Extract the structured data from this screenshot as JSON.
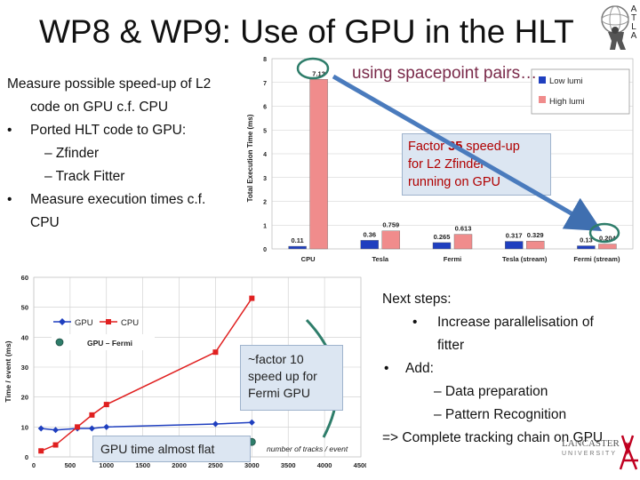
{
  "slide": {
    "title": "WP8 & WP9: Use of GPU in the HLT",
    "logo_letters": [
      "A",
      "T",
      "L",
      "A"
    ],
    "bullets": {
      "intro_line1": "Measure possible speed-up of L2",
      "intro_line2": "code on GPU c.f. CPU",
      "ported": "Ported HLT code to GPU:",
      "sub1": "– Zfinder",
      "sub2": "– Track Fitter",
      "measure_line1": "Measure execution times c.f.",
      "measure_line2": "CPU"
    },
    "next_steps": {
      "heading": "Next steps:",
      "item1_line1": "Increase parallelisation of",
      "item1_line2": "fitter",
      "add": "Add:",
      "sub1": "– Data preparation",
      "sub2": "– Pattern Recognition",
      "conclusion": "=> Complete tracking chain on GPU"
    },
    "lancaster": {
      "line1": "LANCASTER",
      "line2": "UNIVERSITY"
    }
  },
  "chart_data": [
    {
      "type": "bar",
      "ylabel": "Total Execution Time (ms)",
      "ylim": [
        0,
        8
      ],
      "yticks": [
        0,
        1,
        2,
        3,
        4,
        5,
        6,
        7,
        8
      ],
      "categories": [
        "CPU",
        "Tesla",
        "Fermi",
        "Tesla (stream)",
        "Fermi (stream)"
      ],
      "series": [
        {
          "name": "Low lumi",
          "color": "#1f3fbf",
          "values": [
            0.11,
            0.36,
            0.265,
            0.317,
            0.13
          ],
          "labels": [
            "0.11",
            "0.36",
            "0.265",
            "0.317",
            "0.13"
          ]
        },
        {
          "name": "High lumi",
          "color": "#f08c8c",
          "values": [
            7.13,
            0.759,
            0.613,
            0.329,
            0.204
          ],
          "labels": [
            "7.13",
            "0.759",
            "0.613",
            "0.329",
            "0.204"
          ]
        }
      ],
      "legend": "right",
      "grid": true,
      "annotations": {
        "spacepoint": "using spacepoint pairs…",
        "factor_line1_pre": "Factor ",
        "factor_number": "35",
        "factor_line1_post": " speed-up",
        "factor_line2": "for L2 Zfinder",
        "factor_line3": "running on GPU"
      }
    },
    {
      "type": "line",
      "ylabel": "Time / event (ms)",
      "xlabel": "number of tracks / event",
      "xlim": [
        0,
        4500
      ],
      "ylim": [
        0,
        60
      ],
      "xticks": [
        0,
        500,
        1000,
        1500,
        2000,
        2500,
        3000,
        3500,
        4000,
        4500
      ],
      "yticks": [
        0,
        10,
        20,
        30,
        40,
        50,
        60
      ],
      "series": [
        {
          "name": "GPU",
          "color": "#1f3fbf",
          "x": [
            100,
            300,
            600,
            800,
            1000,
            2500,
            3000
          ],
          "y": [
            9.5,
            9.0,
            9.5,
            9.5,
            10,
            11,
            11.5
          ]
        },
        {
          "name": "CPU",
          "color": "#e02020",
          "x": [
            100,
            300,
            600,
            800,
            1000,
            2500,
            3000
          ],
          "y": [
            2,
            4,
            10,
            14,
            17.5,
            35,
            53
          ]
        }
      ],
      "extra_point": {
        "name": "GPU – Fermi",
        "color": "#2e7d6a",
        "x": 3000,
        "y": 5
      },
      "legend": "top-left",
      "grid": true,
      "annotations": {
        "factor_line1": "~factor 10",
        "factor_line2": "speed up for",
        "factor_line3": "Fermi GPU",
        "flat": "GPU time almost flat"
      }
    }
  ]
}
